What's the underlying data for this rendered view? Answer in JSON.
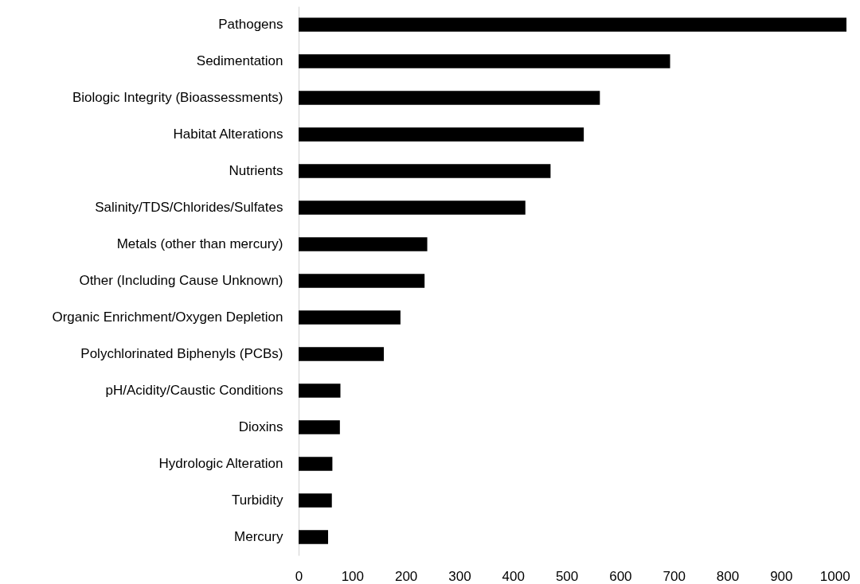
{
  "chart_data": {
    "type": "bar",
    "orientation": "horizontal",
    "categories": [
      "Pathogens",
      "Sedimentation",
      "Biologic Integrity (Bioassessments)",
      "Habitat Alterations",
      "Nutrients",
      "Salinity/TDS/Chlorides/Sulfates",
      "Metals (other than mercury)",
      "Other (Including Cause Unknown)",
      "Organic Enrichment/Oxygen Depletion",
      "Polychlorinated Biphenyls (PCBs)",
      "pH/Acidity/Caustic Conditions",
      "Dioxins",
      "Hydrologic Alteration",
      "Turbidity",
      "Mercury"
    ],
    "values": [
      1022,
      693,
      562,
      532,
      470,
      423,
      240,
      235,
      190,
      159,
      78,
      77,
      63,
      62,
      55
    ],
    "color": "#000000",
    "xlim": [
      0,
      1025
    ],
    "xticks": [
      0,
      100,
      200,
      300,
      400,
      500,
      600,
      700,
      800,
      900,
      1000
    ],
    "grid": false
  }
}
